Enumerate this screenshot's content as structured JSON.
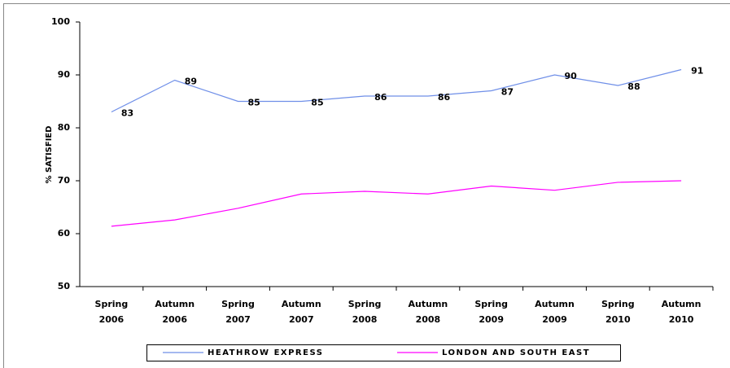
{
  "chart_data": {
    "type": "line",
    "y_label": "% SATISFIED",
    "categories": [
      "Spring 2006",
      "Autumn 2006",
      "Spring 2007",
      "Autumn 2007",
      "Spring 2008",
      "Autumn 2008",
      "Spring 2009",
      "Autumn 2009",
      "Spring 2010",
      "Autumn 2010"
    ],
    "series": [
      {
        "name": "HEATHROW EXPRESS",
        "color": "#6f8fe8",
        "values": [
          83,
          89,
          85,
          85,
          86,
          86,
          87,
          90,
          88,
          91
        ],
        "data_labels": true
      },
      {
        "name": "LONDON AND SOUTH EAST",
        "color": "#ff00ff",
        "values": [
          61.4,
          62.6,
          64.8,
          67.5,
          68,
          67.5,
          69,
          68.2,
          69.7,
          70
        ],
        "data_labels": false
      }
    ],
    "ylim": [
      50,
      100
    ],
    "yticks": [
      50,
      60,
      70,
      80,
      90,
      100
    ],
    "grid": false,
    "legend": "bottom"
  }
}
